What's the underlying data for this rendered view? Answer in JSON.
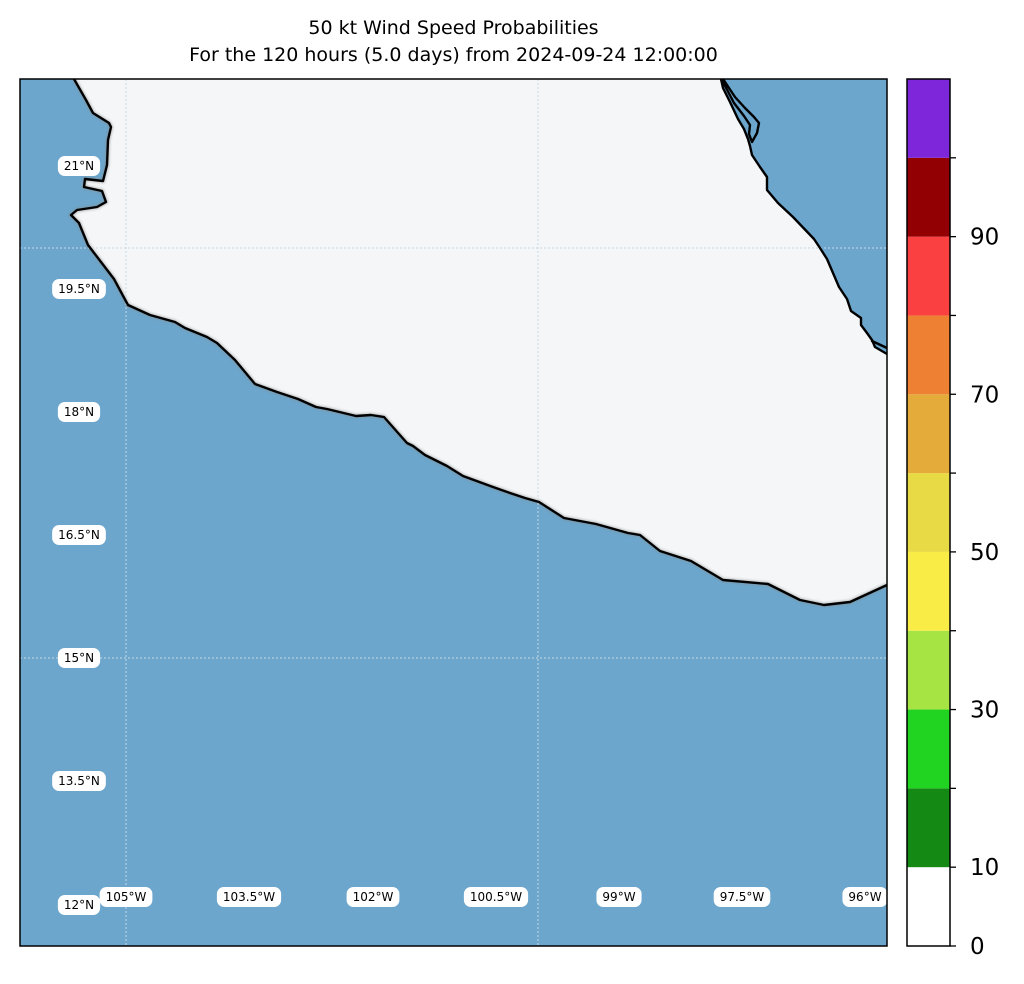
{
  "title": "50 kt Wind Speed Probabilities",
  "subtitle": "For the 120 hours (5.0 days) from 2024-09-24 12:00:00",
  "colors": {
    "ocean": "#6ca6cc",
    "land": "#f4f6f8",
    "coast": "#000000",
    "grid": "#c8d8e4"
  },
  "lat_labels": [
    "21°N",
    "19.5°N",
    "18°N",
    "16.5°N",
    "15°N",
    "13.5°N",
    "12°N"
  ],
  "lon_labels": [
    "105°W",
    "103.5°W",
    "102°W",
    "100.5°W",
    "99°W",
    "97.5°W",
    "96°W"
  ],
  "colorbar": {
    "ticks": [
      "0",
      "10",
      "30",
      "50",
      "70",
      "90"
    ],
    "bins": [
      {
        "from": 0,
        "to": 10,
        "color": "#ffffff"
      },
      {
        "from": 10,
        "to": 20,
        "color": "#148a14"
      },
      {
        "from": 20,
        "to": 30,
        "color": "#22d422"
      },
      {
        "from": 30,
        "to": 40,
        "color": "#a6e444"
      },
      {
        "from": 40,
        "to": 50,
        "color": "#faec46"
      },
      {
        "from": 50,
        "to": 60,
        "color": "#e8da44"
      },
      {
        "from": 60,
        "to": 70,
        "color": "#e4aa3a"
      },
      {
        "from": 70,
        "to": 80,
        "color": "#ee8034"
      },
      {
        "from": 80,
        "to": 90,
        "color": "#fa4040"
      },
      {
        "from": 90,
        "to": 100,
        "color": "#920004"
      },
      {
        "from": 100,
        "to": 110,
        "color": "#7e26da"
      }
    ]
  }
}
